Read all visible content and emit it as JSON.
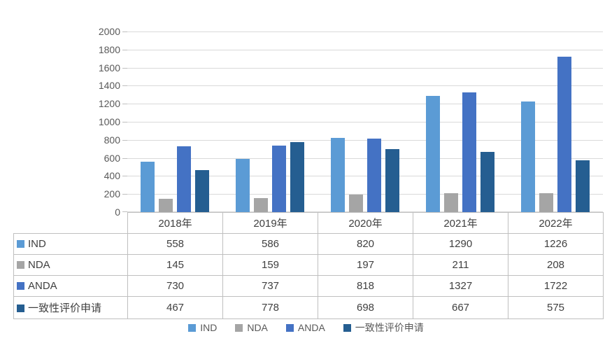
{
  "chart_data": {
    "type": "bar",
    "title": "",
    "xlabel": "",
    "ylabel": "",
    "categories": [
      "2018年",
      "2019年",
      "2020年",
      "2021年",
      "2022年"
    ],
    "series": [
      {
        "name": "IND",
        "color": "#5b9bd5",
        "values": [
          558,
          586,
          820,
          1290,
          1226
        ]
      },
      {
        "name": "NDA",
        "color": "#a5a5a5",
        "values": [
          145,
          159,
          197,
          211,
          208
        ]
      },
      {
        "name": "ANDA",
        "color": "#4472c4",
        "values": [
          730,
          737,
          818,
          1327,
          1722
        ]
      },
      {
        "name": "一致性评价申请",
        "color": "#255e91",
        "values": [
          467,
          778,
          698,
          667,
          575
        ]
      }
    ],
    "ylim": [
      0,
      2000
    ],
    "yticks": [
      0,
      200,
      400,
      600,
      800,
      1000,
      1200,
      1400,
      1600,
      1800,
      2000
    ],
    "grid": true,
    "legend_position": "bottom",
    "data_table_shown": true
  },
  "colors": {
    "gridline": "#d9d9d9",
    "table_border": "#bfbfbf",
    "axis_text": "#595959",
    "table_text": "#404040",
    "background": "#ffffff"
  }
}
